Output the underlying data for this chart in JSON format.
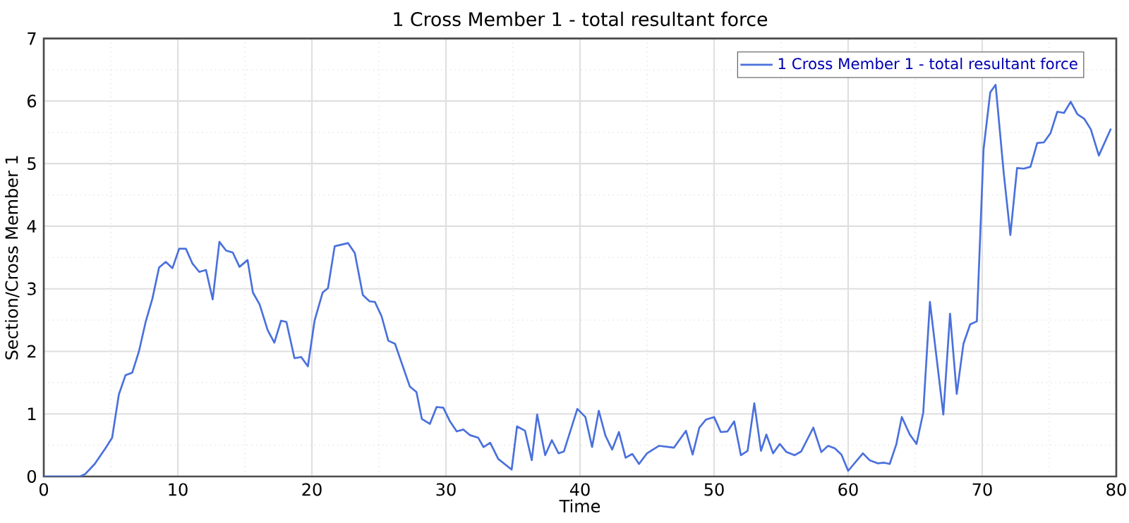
{
  "chart_data": {
    "type": "line",
    "title": "1 Cross Member 1 - total resultant force",
    "xlabel": "Time",
    "ylabel": "Section/Cross Member 1",
    "xlim": [
      0,
      80
    ],
    "ylim": [
      0,
      7
    ],
    "xticks": [
      0,
      10,
      20,
      30,
      40,
      50,
      60,
      70,
      80
    ],
    "yticks": [
      0,
      1,
      2,
      3,
      4,
      5,
      6,
      7
    ],
    "grid": true,
    "legend": "top right",
    "series": [
      {
        "name": "1 Cross Member 1 - total resultant force",
        "color": "#4a70dc",
        "x": [
          0,
          2.7,
          3.1,
          3.8,
          4.6,
          5.1,
          5.6,
          6.1,
          6.6,
          7.1,
          7.6,
          8.1,
          8.6,
          9.1,
          9.6,
          10.1,
          10.6,
          11.1,
          11.6,
          12.1,
          12.6,
          13.1,
          13.6,
          14.1,
          14.6,
          15.2,
          15.6,
          16.1,
          16.7,
          17.2,
          17.7,
          18.1,
          18.7,
          19.2,
          19.7,
          20.2,
          20.8,
          21.2,
          21.7,
          22.7,
          23.2,
          23.8,
          24.3,
          24.7,
          25.2,
          25.7,
          26.2,
          27.3,
          27.8,
          28.2,
          28.8,
          29.3,
          29.8,
          30.3,
          30.8,
          31.3,
          31.8,
          32.4,
          32.8,
          33.3,
          33.9,
          34.9,
          35.3,
          35.9,
          36.4,
          36.8,
          37.4,
          37.9,
          38.4,
          38.8,
          39.8,
          40.4,
          40.9,
          41.4,
          41.9,
          42.4,
          42.9,
          43.4,
          43.9,
          44.4,
          45.0,
          45.9,
          47.0,
          47.9,
          48.4,
          48.9,
          49.4,
          50.0,
          50.5,
          51.0,
          51.5,
          52.0,
          52.5,
          53.0,
          53.5,
          53.9,
          54.4,
          54.9,
          55.4,
          56.0,
          56.5,
          57.4,
          58.0,
          58.5,
          59.0,
          59.5,
          60.0,
          61.1,
          61.6,
          62.2,
          62.7,
          63.1,
          63.6,
          64.0,
          64.6,
          65.1,
          65.6,
          66.1,
          67.1,
          67.6,
          68.1,
          68.6,
          69.1,
          69.6,
          70.1,
          70.6,
          71.0,
          71.6,
          72.1,
          72.6,
          73.1,
          73.6,
          74.1,
          74.6,
          75.1,
          75.6,
          76.1,
          76.6,
          77.1,
          77.6,
          78.1,
          78.7,
          79.6
        ],
        "values": [
          0,
          0,
          0.04,
          0.2,
          0.45,
          0.62,
          1.31,
          1.62,
          1.66,
          2.0,
          2.47,
          2.84,
          3.34,
          3.43,
          3.33,
          3.64,
          3.64,
          3.4,
          3.27,
          3.3,
          2.83,
          3.75,
          3.61,
          3.58,
          3.35,
          3.46,
          2.94,
          2.75,
          2.34,
          2.14,
          2.49,
          2.47,
          1.89,
          1.91,
          1.76,
          2.49,
          2.94,
          3.01,
          3.68,
          3.73,
          3.57,
          2.9,
          2.8,
          2.79,
          2.56,
          2.17,
          2.12,
          1.44,
          1.35,
          0.92,
          0.84,
          1.11,
          1.1,
          0.88,
          0.72,
          0.75,
          0.66,
          0.62,
          0.47,
          0.54,
          0.28,
          0.11,
          0.8,
          0.73,
          0.26,
          0.99,
          0.34,
          0.58,
          0.37,
          0.4,
          1.08,
          0.95,
          0.47,
          1.05,
          0.65,
          0.43,
          0.71,
          0.3,
          0.36,
          0.2,
          0.37,
          0.49,
          0.46,
          0.73,
          0.35,
          0.78,
          0.91,
          0.95,
          0.71,
          0.72,
          0.88,
          0.34,
          0.41,
          1.17,
          0.41,
          0.67,
          0.37,
          0.52,
          0.39,
          0.34,
          0.4,
          0.78,
          0.39,
          0.49,
          0.45,
          0.35,
          0.09,
          0.37,
          0.26,
          0.21,
          0.22,
          0.2,
          0.52,
          0.95,
          0.67,
          0.52,
          1.02,
          2.79,
          0.99,
          2.6,
          1.32,
          2.12,
          2.43,
          2.48,
          5.23,
          6.14,
          6.26,
          4.86,
          3.86,
          4.93,
          4.92,
          4.95,
          5.33,
          5.34,
          5.49,
          5.83,
          5.81,
          5.99,
          5.79,
          5.72,
          5.55,
          5.13,
          5.56
        ]
      }
    ]
  }
}
